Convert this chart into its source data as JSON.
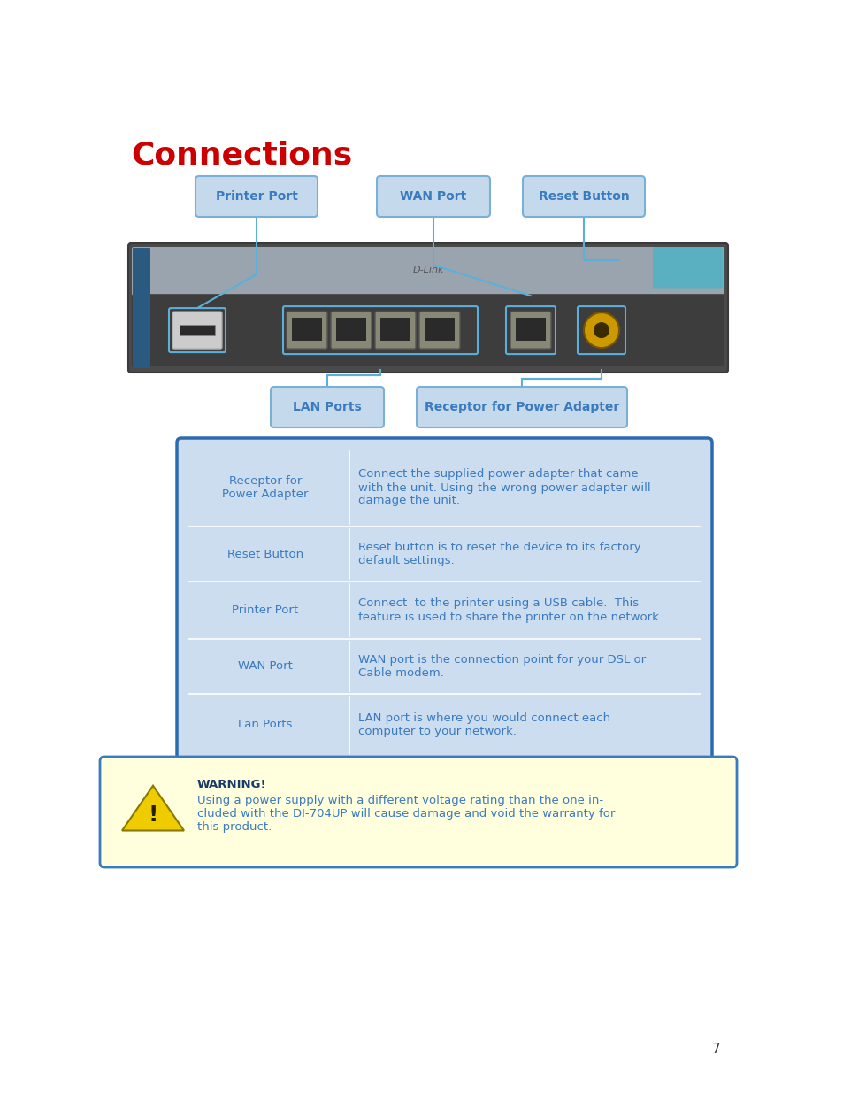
{
  "title": "Connections",
  "title_color": "#cc0000",
  "title_fontsize": 26,
  "bg_color": "#ffffff",
  "label_color": "#3a7abf",
  "label_bg": "#c5d9ed",
  "label_border": "#7ab0d4",
  "table_bg": "#ccddf0",
  "table_border": "#2a6aaf",
  "table_text_color": "#3a7abf",
  "warning_bg": "#ffffdd",
  "warning_border": "#3a7abf",
  "warning_title": "WARNING!",
  "warning_title_color": "#1a3a6a",
  "warning_text": "Using a power supply with a different voltage rating than the one in-\ncluded with the DI-704UP will cause damage and void the warranty for\nthis product.",
  "warning_text_color": "#3a7abf",
  "page_number": "7",
  "table_rows": [
    {
      "label": "Receptor for\nPower Adapter",
      "desc": "Connect the supplied power adapter that came\nwith the unit. Using the wrong power adapter will\ndamage the unit."
    },
    {
      "label": "Reset Button",
      "desc": "Reset button is to reset the device to its factory\ndefault settings."
    },
    {
      "label": "Printer Port",
      "desc": "Connect  to the printer using a USB cable.  This\nfeature is used to share the printer on the network."
    },
    {
      "label": "WAN Port",
      "desc": "WAN port is the connection point for your DSL or\nCable modem."
    },
    {
      "label": "Lan Ports",
      "desc": "LAN port is where you would connect each\ncomputer to your network."
    }
  ]
}
